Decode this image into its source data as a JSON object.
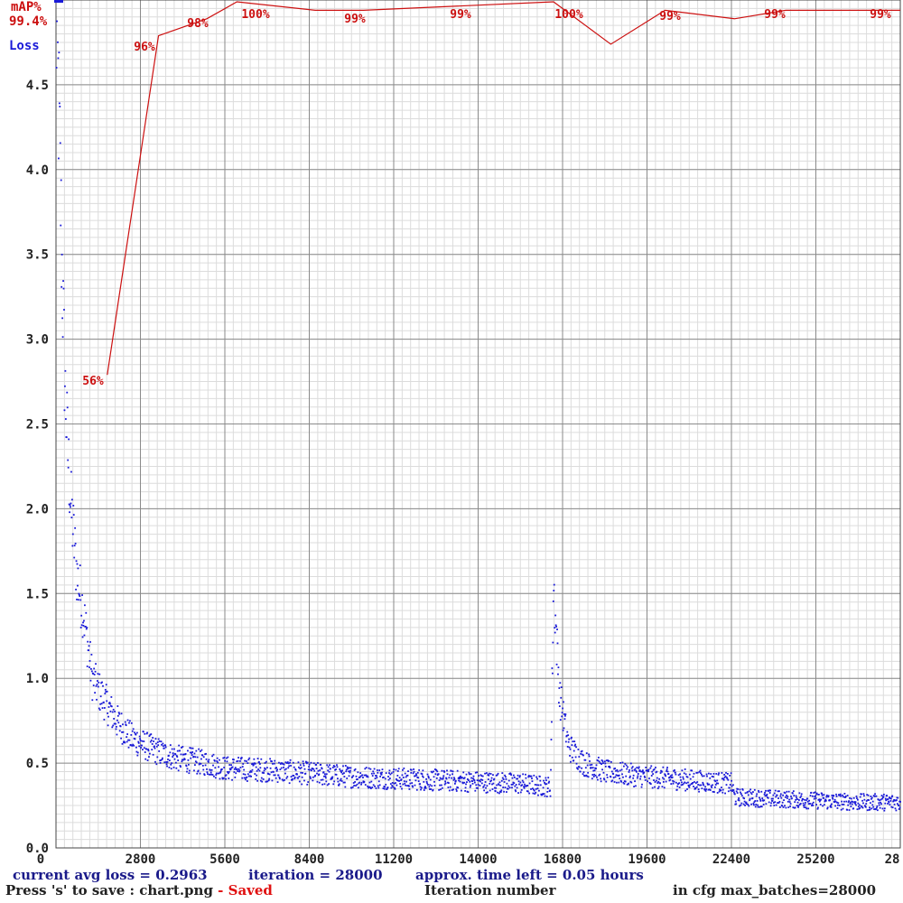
{
  "chart_data": {
    "type": "scatter",
    "title": "",
    "xlabel": "Iteration number",
    "ylabel": "Loss",
    "y2label": "mAP%",
    "xlim": [
      0,
      28000
    ],
    "ylim": [
      0,
      5.0
    ],
    "x_ticks": [
      "0",
      "2800",
      "5600",
      "8400",
      "11200",
      "14000",
      "16800",
      "19600",
      "22400",
      "25200",
      "28"
    ],
    "y_ticks": [
      "0.0",
      "0.5",
      "1.0",
      "1.5",
      "2.0",
      "2.5",
      "3.0",
      "3.5",
      "4.0",
      "4.5"
    ],
    "grid": true,
    "series": [
      {
        "name": "Loss",
        "color": "#1a1ad8",
        "style": "points",
        "x": [
          0,
          100,
          200,
          300,
          400,
          500,
          700,
          900,
          1200,
          1500,
          2000,
          2500,
          3000,
          3500,
          4000,
          5000,
          5600,
          7000,
          8400,
          9800,
          11200,
          12600,
          14000,
          15400,
          16400,
          16500,
          16700,
          17000,
          17500,
          18200,
          19600,
          21000,
          22400,
          22500,
          23800,
          25200,
          26600,
          28000
        ],
        "values": [
          4.9,
          4.3,
          3.4,
          2.7,
          2.3,
          2.0,
          1.6,
          1.4,
          1.0,
          0.9,
          0.75,
          0.65,
          0.6,
          0.56,
          0.53,
          0.5,
          0.47,
          0.46,
          0.44,
          0.42,
          0.41,
          0.4,
          0.39,
          0.38,
          0.36,
          1.55,
          0.9,
          0.6,
          0.5,
          0.45,
          0.42,
          0.4,
          0.38,
          0.3,
          0.29,
          0.28,
          0.27,
          0.27
        ]
      },
      {
        "name": "mAP%",
        "color": "#cc1010",
        "style": "line",
        "x": [
          1700,
          3400,
          5000,
          6000,
          8600,
          10200,
          16500,
          18400,
          20200,
          22500,
          24200,
          28000
        ],
        "values": [
          56,
          96,
          98,
          100,
          99,
          99,
          100,
          95,
          99,
          98,
          99,
          99
        ],
        "labels": [
          "56%",
          "96%",
          "98%",
          "100%",
          "99%",
          "99%",
          "100%",
          "99%",
          "99%",
          "99%"
        ]
      }
    ],
    "map_current": "99.4%"
  },
  "status": {
    "loss_line": "current avg loss = 0.2963",
    "iteration_line": "iteration = 28000",
    "time_left_line": "approx. time left = 0.05 hours",
    "save_prefix": "Press 's' to save : chart.png",
    "save_saved": " - Saved",
    "iteration_label": "Iteration number",
    "max_batches": "in cfg max_batches=28000"
  }
}
